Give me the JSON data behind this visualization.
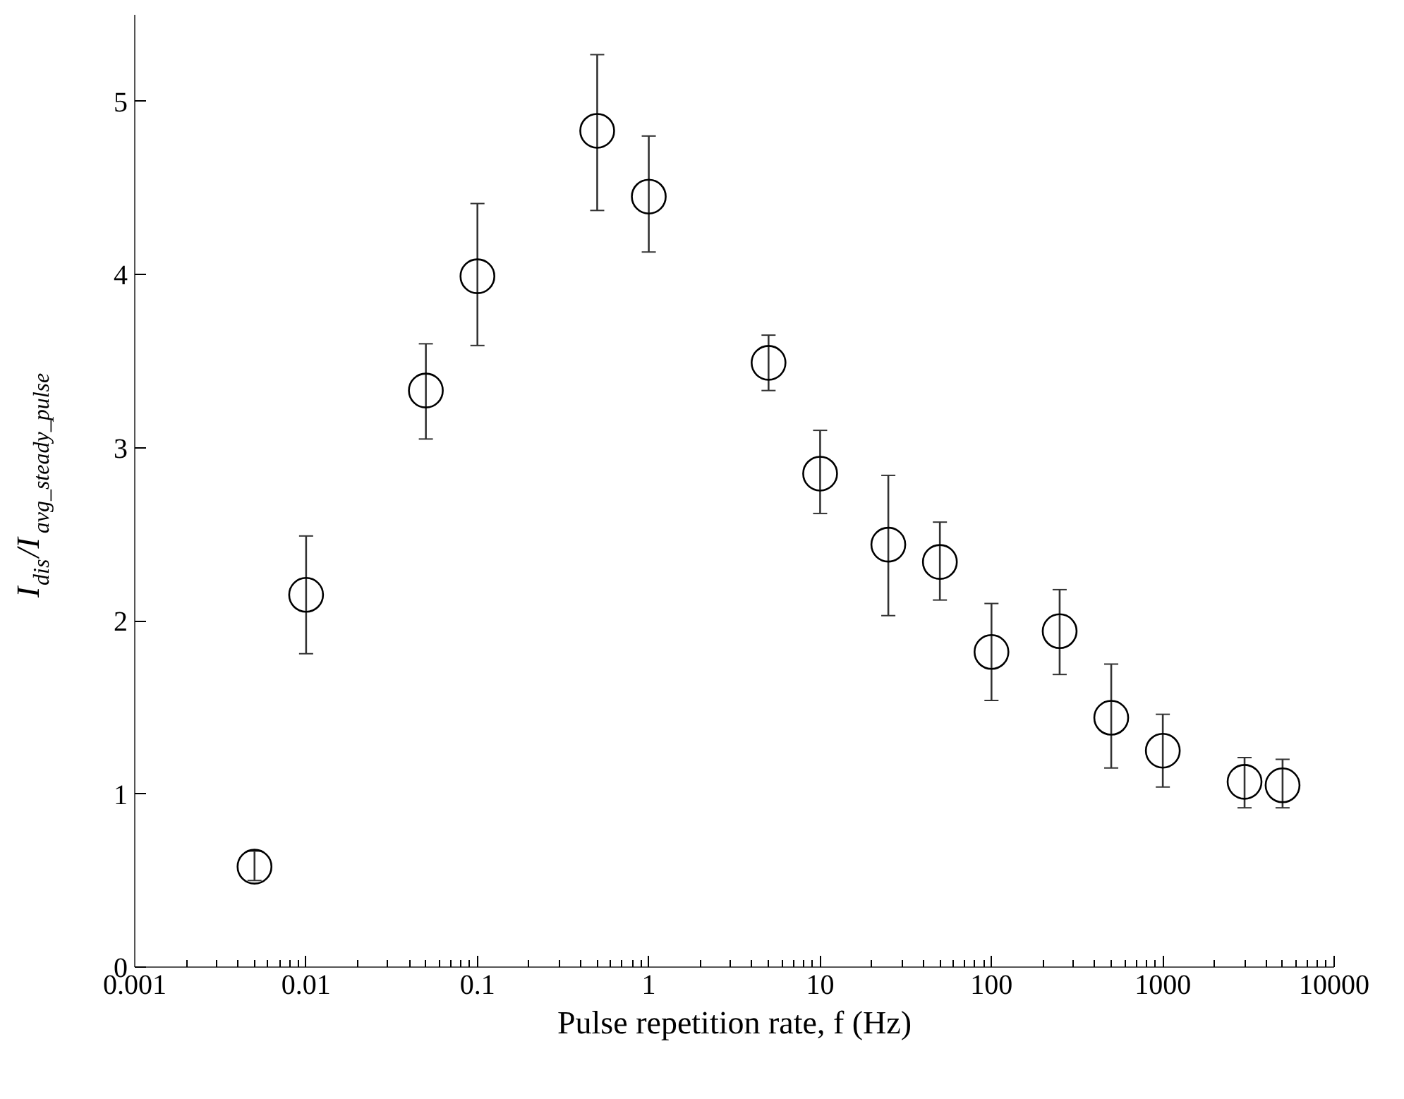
{
  "chart_data": {
    "type": "scatter",
    "xlabel": "Pulse repetition rate, f (Hz)",
    "ylabel": "I$_{dis}$/I$_{avg_steady_pulse}$",
    "log": "x",
    "xlim": [
      0.001,
      10000
    ],
    "ylim": [
      0,
      5.5
    ],
    "xticks": [
      0.001,
      0.01,
      0.1,
      1,
      10,
      100,
      1000,
      10000
    ],
    "yticks": [
      0,
      1,
      2,
      3,
      4,
      5
    ],
    "grid": false,
    "marker": "circle",
    "x": [
      0.005,
      0.01,
      0.05,
      0.1,
      0.5,
      1,
      5,
      10,
      25,
      50,
      100,
      250,
      500,
      1000,
      3000,
      5000
    ],
    "series": [
      {
        "color": "#000000",
        "values": [
          0.58,
          2.15,
          3.33,
          3.99,
          4.83,
          4.45,
          3.49,
          2.85,
          2.44,
          2.34,
          1.82,
          1.94,
          1.44,
          1.25,
          1.07,
          1.05
        ],
        "errors": [
          [
            0.5,
            0.67
          ],
          [
            1.81,
            2.49
          ],
          [
            3.05,
            3.6
          ],
          [
            3.59,
            4.41
          ],
          [
            4.37,
            5.27
          ],
          [
            4.13,
            4.8
          ],
          [
            3.33,
            3.65
          ],
          [
            2.62,
            3.1
          ],
          [
            2.03,
            2.84
          ],
          [
            2.12,
            2.57
          ],
          [
            1.54,
            2.1
          ],
          [
            1.69,
            2.18
          ],
          [
            1.15,
            1.75
          ],
          [
            1.04,
            1.46
          ],
          [
            0.92,
            1.21
          ],
          [
            0.92,
            1.2
          ]
        ]
      }
    ]
  }
}
